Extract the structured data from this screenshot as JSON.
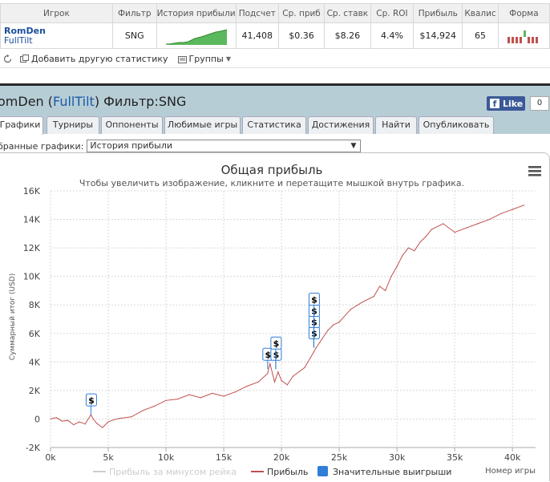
{
  "stats_table": {
    "headers": [
      "Игрок",
      "Фильтр",
      "История прибыли",
      "Подсчет",
      "Ср. приб",
      "Ср. ставк",
      "Ср. ROI",
      "Прибыль",
      "Квалис",
      "Форма"
    ],
    "row": {
      "player": "RomDen",
      "site": "FullTilt",
      "filter": "SNG",
      "count": "41,408",
      "avg_profit": "$0.36",
      "avg_stake": "$8.26",
      "avg_roi": "4.4%",
      "profit": "$14,924",
      "ability": "65"
    }
  },
  "toolbar": {
    "add_stats": "Добавить другую статистику",
    "groups": "Группы"
  },
  "header": {
    "player": "omDen",
    "site": "FullTilt",
    "filter_text": "Фильтр:SNG",
    "like_label": "Like",
    "like_count": "0"
  },
  "tabs": [
    "Графики",
    "Турниры",
    "Оппоненты",
    "Любимые игры",
    "Статистика",
    "Достижения",
    "Найти",
    "Опубликовать"
  ],
  "graph_select": {
    "label": "бранные графики:",
    "value": "История прибыли"
  },
  "colors": {
    "header_bg": "#b7cdd6",
    "profit_line": "#c0504d",
    "flag_blue": "#2f7ed8",
    "facebook": "#3b5998"
  },
  "chart_data": {
    "type": "line",
    "title": "Общая прибыль",
    "subtitle": "Чтобы увеличить изображение, кликните и перетащите мышкой внутрь графика.",
    "ylabel": "Суммарный итог (USD)",
    "xlabel": "Номер игры",
    "ylim": [
      -2000,
      16000
    ],
    "xlim": [
      0,
      42000
    ],
    "y_ticks": [
      "-2K",
      "0",
      "2K",
      "4K",
      "6K",
      "8K",
      "10K",
      "12K",
      "14K",
      "16K"
    ],
    "x_ticks": [
      "0k",
      "5k",
      "10k",
      "15k",
      "20k",
      "25k",
      "30k",
      "35k",
      "40k"
    ],
    "legend": [
      "Прибыль за минусом рейка",
      "Прибыль",
      "Значительные выигрыши"
    ],
    "grid": true,
    "series": [
      {
        "name": "Прибыль",
        "points": [
          [
            0,
            0
          ],
          [
            500,
            100
          ],
          [
            1000,
            -150
          ],
          [
            1500,
            -100
          ],
          [
            2000,
            -400
          ],
          [
            2500,
            -200
          ],
          [
            3000,
            -350
          ],
          [
            3500,
            300
          ],
          [
            3700,
            0
          ],
          [
            4000,
            -300
          ],
          [
            4500,
            -600
          ],
          [
            5000,
            -200
          ],
          [
            5500,
            -50
          ],
          [
            6000,
            50
          ],
          [
            7000,
            150
          ],
          [
            8000,
            600
          ],
          [
            9000,
            900
          ],
          [
            10000,
            1300
          ],
          [
            11000,
            1400
          ],
          [
            12000,
            1700
          ],
          [
            13000,
            1500
          ],
          [
            14000,
            1800
          ],
          [
            15000,
            1600
          ],
          [
            16000,
            1900
          ],
          [
            17000,
            2300
          ],
          [
            18000,
            2600
          ],
          [
            18800,
            3200
          ],
          [
            19000,
            3900
          ],
          [
            19400,
            2600
          ],
          [
            19700,
            3300
          ],
          [
            20000,
            2700
          ],
          [
            20500,
            2400
          ],
          [
            21000,
            3000
          ],
          [
            22000,
            3600
          ],
          [
            22800,
            4700
          ],
          [
            23000,
            5000
          ],
          [
            23500,
            5600
          ],
          [
            24000,
            6200
          ],
          [
            24500,
            6600
          ],
          [
            25000,
            6800
          ],
          [
            26000,
            7700
          ],
          [
            27000,
            8200
          ],
          [
            28000,
            8600
          ],
          [
            28500,
            9300
          ],
          [
            29000,
            9000
          ],
          [
            29500,
            10000
          ],
          [
            30000,
            10700
          ],
          [
            30500,
            11500
          ],
          [
            31000,
            12000
          ],
          [
            31500,
            11800
          ],
          [
            32000,
            12400
          ],
          [
            32500,
            12800
          ],
          [
            33000,
            13300
          ],
          [
            34000,
            13700
          ],
          [
            35000,
            13100
          ],
          [
            36000,
            13400
          ],
          [
            37000,
            13700
          ],
          [
            38000,
            14000
          ],
          [
            39000,
            14400
          ],
          [
            40000,
            14700
          ],
          [
            41000,
            15000
          ]
        ]
      }
    ],
    "big_wins": [
      {
        "x": 3500,
        "y": 300,
        "count": 1
      },
      {
        "x": 18800,
        "y": 3500,
        "count": 1
      },
      {
        "x": 19500,
        "y": 3500,
        "count": 2
      },
      {
        "x": 22800,
        "y": 5000,
        "count": 4
      }
    ]
  }
}
